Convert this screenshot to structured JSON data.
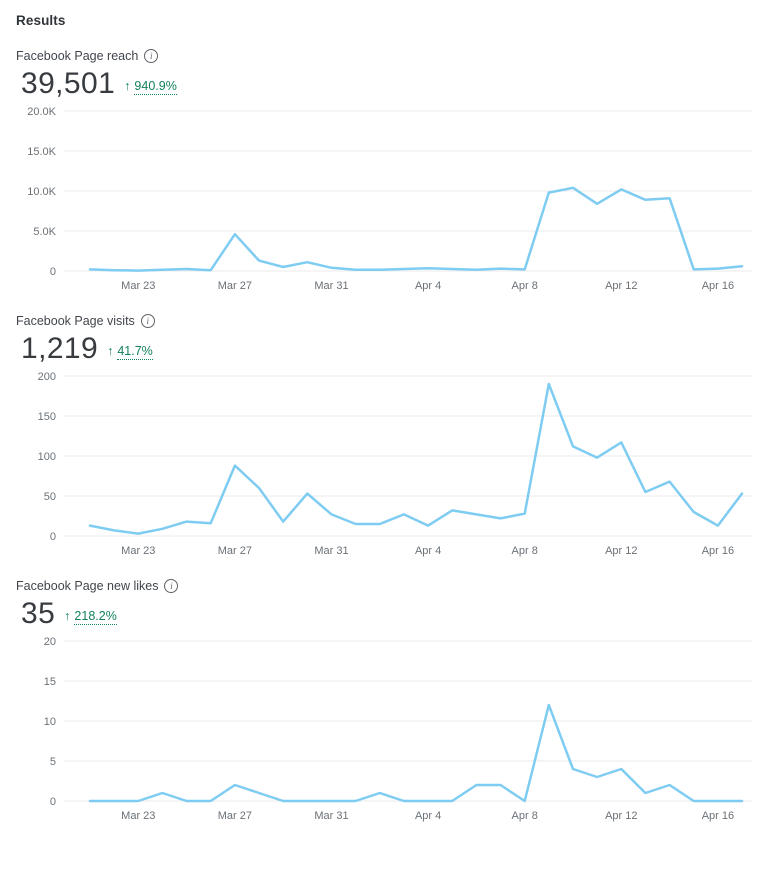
{
  "page": {
    "title": "Results"
  },
  "accent_colors": {
    "line": "#7fccf2",
    "positive": "#12805c",
    "grid": "#ebebeb",
    "axis_text": "#6b7177",
    "title_text": "#41464c",
    "value_text": "#383c40"
  },
  "info_icon_glyph": "i",
  "x_tick_indices": [
    2,
    6,
    10,
    14,
    18,
    22,
    26
  ],
  "chart_data": [
    {
      "type": "line",
      "title": "Facebook Page reach",
      "metric_value": "39,501",
      "change_arrow": "↑",
      "change_percent": "940.9%",
      "ylim": [
        0,
        20000
      ],
      "y_ticks": [
        "20.0K",
        "15.0K",
        "10.0K",
        "5.0K",
        "0"
      ],
      "y_tick_values": [
        20000,
        15000,
        10000,
        5000,
        0
      ],
      "categories": [
        "Mar 21",
        "Mar 22",
        "Mar 23",
        "Mar 24",
        "Mar 25",
        "Mar 26",
        "Mar 27",
        "Mar 28",
        "Mar 29",
        "Mar 30",
        "Mar 31",
        "Apr 1",
        "Apr 2",
        "Apr 3",
        "Apr 4",
        "Apr 5",
        "Apr 6",
        "Apr 7",
        "Apr 8",
        "Apr 9",
        "Apr 10",
        "Apr 11",
        "Apr 12",
        "Apr 13",
        "Apr 14",
        "Apr 15",
        "Apr 16",
        "Apr 17"
      ],
      "values": [
        200,
        100,
        50,
        150,
        250,
        100,
        4600,
        1300,
        500,
        1100,
        400,
        150,
        150,
        250,
        350,
        250,
        150,
        300,
        200,
        9800,
        10400,
        8400,
        10200,
        8900,
        9100,
        200,
        300,
        600
      ],
      "x_labels_shown": [
        "Mar 23",
        "Mar 27",
        "Mar 31",
        "Apr 4",
        "Apr 8",
        "Apr 12",
        "Apr 16"
      ],
      "legend": "none",
      "grid": "horizontal"
    },
    {
      "type": "line",
      "title": "Facebook Page visits",
      "metric_value": "1,219",
      "change_arrow": "↑",
      "change_percent": "41.7%",
      "ylim": [
        0,
        200
      ],
      "y_ticks": [
        "200",
        "150",
        "100",
        "50",
        "0"
      ],
      "y_tick_values": [
        200,
        150,
        100,
        50,
        0
      ],
      "categories": [
        "Mar 21",
        "Mar 22",
        "Mar 23",
        "Mar 24",
        "Mar 25",
        "Mar 26",
        "Mar 27",
        "Mar 28",
        "Mar 29",
        "Mar 30",
        "Mar 31",
        "Apr 1",
        "Apr 2",
        "Apr 3",
        "Apr 4",
        "Apr 5",
        "Apr 6",
        "Apr 7",
        "Apr 8",
        "Apr 9",
        "Apr 10",
        "Apr 11",
        "Apr 12",
        "Apr 13",
        "Apr 14",
        "Apr 15",
        "Apr 16",
        "Apr 17"
      ],
      "values": [
        13,
        7,
        3,
        9,
        18,
        16,
        88,
        60,
        18,
        53,
        27,
        15,
        15,
        27,
        13,
        32,
        27,
        22,
        28,
        190,
        112,
        98,
        117,
        55,
        68,
        30,
        13,
        53
      ],
      "x_labels_shown": [
        "Mar 23",
        "Mar 27",
        "Mar 31",
        "Apr 4",
        "Apr 8",
        "Apr 12",
        "Apr 16"
      ],
      "legend": "none",
      "grid": "horizontal"
    },
    {
      "type": "line",
      "title": "Facebook Page new likes",
      "metric_value": "35",
      "change_arrow": "↑",
      "change_percent": "218.2%",
      "ylim": [
        0,
        20
      ],
      "y_ticks": [
        "20",
        "15",
        "10",
        "5",
        "0"
      ],
      "y_tick_values": [
        20,
        15,
        10,
        5,
        0
      ],
      "categories": [
        "Mar 21",
        "Mar 22",
        "Mar 23",
        "Mar 24",
        "Mar 25",
        "Mar 26",
        "Mar 27",
        "Mar 28",
        "Mar 29",
        "Mar 30",
        "Mar 31",
        "Apr 1",
        "Apr 2",
        "Apr 3",
        "Apr 4",
        "Apr 5",
        "Apr 6",
        "Apr 7",
        "Apr 8",
        "Apr 9",
        "Apr 10",
        "Apr 11",
        "Apr 12",
        "Apr 13",
        "Apr 14",
        "Apr 15",
        "Apr 16",
        "Apr 17"
      ],
      "values": [
        0,
        0,
        0,
        1,
        0,
        0,
        2,
        1,
        0,
        0,
        0,
        0,
        1,
        0,
        0,
        0,
        2,
        2,
        0,
        12,
        4,
        3,
        4,
        1,
        2,
        0,
        0,
        0
      ],
      "x_labels_shown": [
        "Mar 23",
        "Mar 27",
        "Mar 31",
        "Apr 4",
        "Apr 8",
        "Apr 12",
        "Apr 16"
      ],
      "legend": "none",
      "grid": "horizontal"
    }
  ]
}
